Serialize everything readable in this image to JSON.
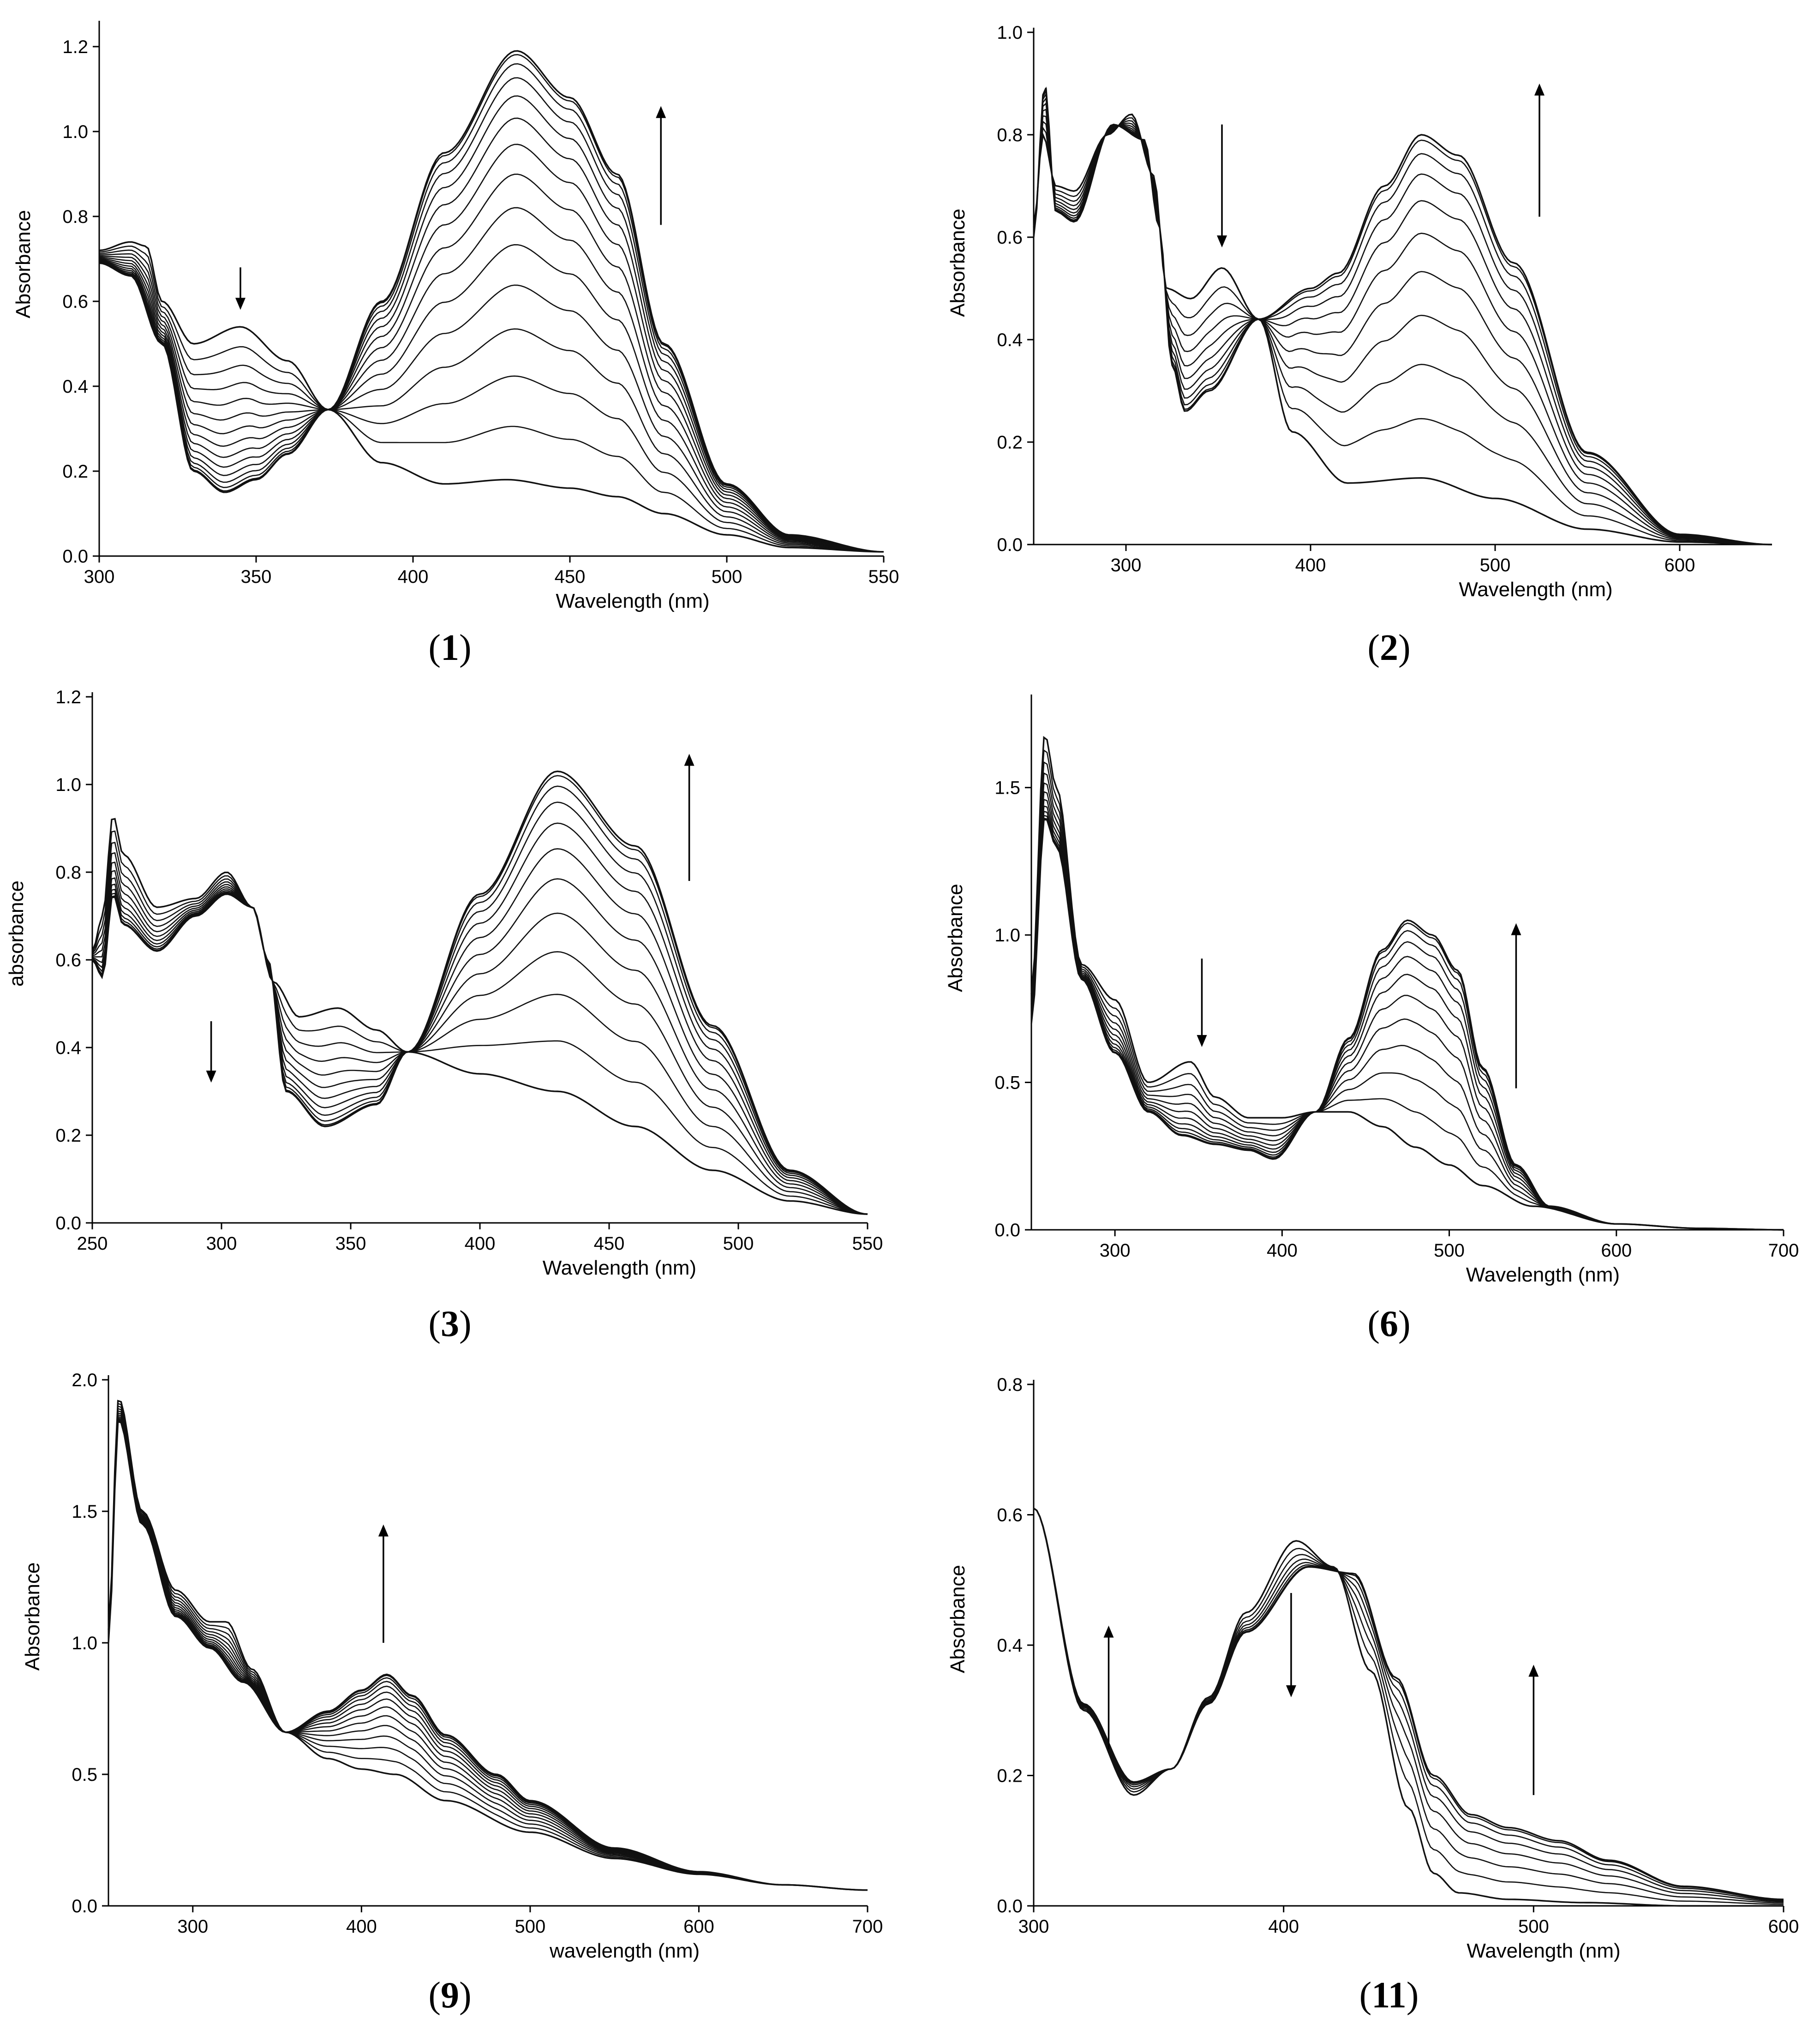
{
  "chart_data": [
    {
      "type": "line",
      "panel_label": "(1)",
      "xlabel": "Wavelength (nm)",
      "ylabel": "Absorbance",
      "xlim": [
        300,
        550
      ],
      "ylim": [
        0.0,
        1.25
      ],
      "xticks": [
        300,
        350,
        400,
        450,
        500,
        550
      ],
      "yticks": [
        0.0,
        0.2,
        0.4,
        0.6,
        0.8,
        1.0,
        1.2
      ],
      "xtick_labels": [
        "300",
        "350",
        "400",
        "450",
        "500",
        "550"
      ],
      "ytick_labels": [
        "0.0",
        "0.2",
        "0.4",
        "0.6",
        "0.8",
        "1.0",
        "1.2"
      ],
      "grid": false,
      "isosbestic": [
        373,
        0.345
      ],
      "series_count": 15,
      "series_first": {
        "name": "initial spectrum",
        "x": [
          300,
          310,
          315,
          320,
          330,
          345,
          360,
          373,
          390,
          410,
          430,
          450,
          465,
          480,
          500,
          520,
          550
        ],
        "y": [
          0.72,
          0.74,
          0.73,
          0.6,
          0.5,
          0.54,
          0.46,
          0.345,
          0.22,
          0.17,
          0.18,
          0.16,
          0.14,
          0.1,
          0.05,
          0.02,
          0.01
        ]
      },
      "series_last": {
        "name": "final spectrum",
        "x": [
          300,
          310,
          320,
          330,
          340,
          350,
          360,
          373,
          390,
          410,
          433,
          450,
          465,
          480,
          500,
          520,
          550
        ],
        "y": [
          0.69,
          0.66,
          0.5,
          0.2,
          0.15,
          0.18,
          0.24,
          0.345,
          0.6,
          0.95,
          1.19,
          1.08,
          0.9,
          0.5,
          0.17,
          0.05,
          0.01
        ]
      },
      "arrows": [
        {
          "x": 345,
          "y_from": 0.68,
          "y_to": 0.58,
          "direction": "down"
        },
        {
          "x": 479,
          "y_from": 0.78,
          "y_to": 1.06,
          "direction": "up"
        }
      ]
    },
    {
      "type": "line",
      "panel_label": "(2)",
      "xlabel": "Wavelength (nm)",
      "ylabel": "Absorbance",
      "xlim": [
        250,
        650
      ],
      "ylim": [
        0.0,
        1.0
      ],
      "xticks": [
        300,
        400,
        500,
        600
      ],
      "yticks": [
        0.0,
        0.2,
        0.4,
        0.6,
        0.8,
        1.0
      ],
      "xtick_labels": [
        "300",
        "400",
        "500",
        "600"
      ],
      "ytick_labels": [
        "0.0",
        "0.2",
        "0.4",
        "0.6",
        "0.8",
        "1.0"
      ],
      "grid": false,
      "isosbestic": [
        372,
        0.44
      ],
      "series_count": 11,
      "series_first": {
        "name": "initial spectrum",
        "x": [
          250,
          255,
          262,
          272,
          290,
          303,
          315,
          322,
          335,
          352,
          372,
          390,
          420,
          460,
          500,
          550,
          600,
          650
        ],
        "y": [
          0.62,
          0.8,
          0.7,
          0.69,
          0.8,
          0.84,
          0.72,
          0.5,
          0.48,
          0.54,
          0.44,
          0.22,
          0.12,
          0.13,
          0.09,
          0.03,
          0.005,
          0.0
        ]
      },
      "series_last": {
        "name": "final spectrum",
        "x": [
          250,
          256,
          262,
          272,
          293,
          310,
          318,
          325,
          332,
          345,
          372,
          400,
          415,
          440,
          460,
          480,
          510,
          550,
          600,
          650
        ],
        "y": [
          0.6,
          0.9,
          0.65,
          0.63,
          0.82,
          0.79,
          0.62,
          0.35,
          0.26,
          0.3,
          0.44,
          0.5,
          0.53,
          0.7,
          0.8,
          0.76,
          0.55,
          0.18,
          0.02,
          0.0
        ]
      },
      "arrows": [
        {
          "x": 352,
          "y_from": 0.82,
          "y_to": 0.58,
          "direction": "down"
        },
        {
          "x": 524,
          "y_from": 0.64,
          "y_to": 0.9,
          "direction": "up"
        }
      ]
    },
    {
      "type": "line",
      "panel_label": "(3)",
      "xlabel": "Wavelength (nm)",
      "ylabel": "absorbance",
      "xlim": [
        250,
        550
      ],
      "ylim": [
        0.0,
        1.2
      ],
      "xticks": [
        250,
        300,
        350,
        400,
        450,
        500,
        550
      ],
      "yticks": [
        0.0,
        0.2,
        0.4,
        0.6,
        0.8,
        1.0,
        1.2
      ],
      "xtick_labels": [
        "250",
        "300",
        "350",
        "400",
        "450",
        "500",
        "550"
      ],
      "ytick_labels": [
        "0.0",
        "0.2",
        "0.4",
        "0.6",
        "0.8",
        "1.0",
        "1.2"
      ],
      "grid": false,
      "isosbestic": [
        372,
        0.39
      ],
      "series_count": 12,
      "series_first": {
        "name": "initial spectrum",
        "x": [
          250,
          254,
          258,
          262,
          275,
          290,
          302,
          312,
          320,
          330,
          345,
          360,
          372,
          400,
          430,
          460,
          490,
          520,
          550
        ],
        "y": [
          0.62,
          0.7,
          0.93,
          0.84,
          0.72,
          0.74,
          0.8,
          0.72,
          0.55,
          0.47,
          0.49,
          0.44,
          0.39,
          0.34,
          0.3,
          0.22,
          0.12,
          0.05,
          0.02
        ]
      },
      "series_last": {
        "name": "final spectrum",
        "x": [
          250,
          254,
          258,
          262,
          275,
          290,
          302,
          312,
          318,
          325,
          340,
          360,
          372,
          400,
          430,
          460,
          490,
          520,
          550
        ],
        "y": [
          0.6,
          0.56,
          0.75,
          0.68,
          0.62,
          0.7,
          0.75,
          0.72,
          0.6,
          0.3,
          0.22,
          0.27,
          0.39,
          0.75,
          1.03,
          0.86,
          0.45,
          0.12,
          0.02
        ]
      },
      "arrows": [
        {
          "x": 296,
          "y_from": 0.46,
          "y_to": 0.32,
          "direction": "down"
        },
        {
          "x": 481,
          "y_from": 0.78,
          "y_to": 1.07,
          "direction": "up"
        }
      ]
    },
    {
      "type": "line",
      "panel_label": "(6)",
      "xlabel": "Wavelength (nm)",
      "ylabel": "Absorbance",
      "xlim": [
        250,
        700
      ],
      "ylim": [
        0.0,
        1.8
      ],
      "xticks": [
        300,
        400,
        500,
        600,
        700
      ],
      "yticks": [
        0.0,
        0.5,
        1.0,
        1.5
      ],
      "xtick_labels": [
        "300",
        "400",
        "500",
        "600",
        "700"
      ],
      "ytick_labels": [
        "0.0",
        "0.5",
        "1.0",
        "1.5"
      ],
      "grid": false,
      "isosbestic": [
        420,
        0.4
      ],
      "series_count": 12,
      "series_first": {
        "name": "initial spectrum",
        "x": [
          250,
          258,
          265,
          280,
          300,
          320,
          345,
          360,
          380,
          400,
          420,
          440,
          460,
          480,
          500,
          520,
          550,
          600,
          650,
          700
        ],
        "y": [
          0.8,
          1.68,
          1.5,
          0.9,
          0.78,
          0.5,
          0.57,
          0.45,
          0.38,
          0.38,
          0.4,
          0.4,
          0.35,
          0.28,
          0.22,
          0.15,
          0.08,
          0.02,
          0.005,
          0.0
        ]
      },
      "series_last": {
        "name": "final spectrum",
        "x": [
          250,
          258,
          265,
          280,
          300,
          320,
          340,
          360,
          380,
          395,
          420,
          440,
          460,
          475,
          490,
          505,
          520,
          540,
          560,
          600,
          650,
          700
        ],
        "y": [
          0.7,
          1.4,
          1.3,
          0.85,
          0.6,
          0.4,
          0.32,
          0.29,
          0.27,
          0.24,
          0.4,
          0.65,
          0.95,
          1.05,
          1.0,
          0.88,
          0.55,
          0.22,
          0.08,
          0.02,
          0.005,
          0.0
        ]
      },
      "arrows": [
        {
          "x": 352,
          "y_from": 0.92,
          "y_to": 0.62,
          "direction": "down"
        },
        {
          "x": 540,
          "y_from": 0.48,
          "y_to": 1.04,
          "direction": "up"
        }
      ]
    },
    {
      "type": "line",
      "panel_label": "(9)",
      "xlabel": "wavelength (nm)",
      "ylabel": "Absorbance",
      "xlim": [
        250,
        700
      ],
      "ylim": [
        0.0,
        2.0
      ],
      "xticks": [
        300,
        400,
        500,
        600,
        700
      ],
      "yticks": [
        0.0,
        0.5,
        1.0,
        1.5,
        2.0
      ],
      "xtick_labels": [
        "300",
        "400",
        "500",
        "600",
        "700"
      ],
      "ytick_labels": [
        "0.0",
        "0.5",
        "1.0",
        "1.5",
        "2.0"
      ],
      "grid": false,
      "isosbestic": [
        355,
        0.66
      ],
      "series_count": 14,
      "series_first": {
        "name": "initial spectrum",
        "x": [
          250,
          256,
          270,
          290,
          310,
          320,
          335,
          355,
          380,
          400,
          420,
          450,
          500,
          550,
          600,
          650,
          700
        ],
        "y": [
          1.05,
          1.93,
          1.5,
          1.2,
          1.08,
          1.08,
          0.9,
          0.66,
          0.56,
          0.52,
          0.5,
          0.4,
          0.28,
          0.18,
          0.12,
          0.08,
          0.06
        ]
      },
      "series_last": {
        "name": "final spectrum",
        "x": [
          250,
          256,
          270,
          290,
          310,
          330,
          355,
          380,
          400,
          415,
          430,
          450,
          480,
          500,
          550,
          600,
          650,
          700
        ],
        "y": [
          1.0,
          1.85,
          1.45,
          1.1,
          0.98,
          0.85,
          0.66,
          0.74,
          0.82,
          0.88,
          0.8,
          0.65,
          0.5,
          0.4,
          0.22,
          0.13,
          0.08,
          0.06
        ]
      },
      "arrows": [
        {
          "x": 413,
          "y_from": 1.0,
          "y_to": 1.45,
          "direction": "up"
        }
      ]
    },
    {
      "type": "line",
      "panel_label": "(11)",
      "xlabel": "Wavelength (nm)",
      "ylabel": "Absorbance",
      "xlim": [
        300,
        600
      ],
      "ylim": [
        0.0,
        0.8
      ],
      "xticks": [
        300,
        400,
        500,
        600
      ],
      "yticks": [
        0.0,
        0.2,
        0.4,
        0.6,
        0.8
      ],
      "xtick_labels": [
        "300",
        "400",
        "500",
        "600"
      ],
      "ytick_labels": [
        "0.0",
        "0.2",
        "0.4",
        "0.6",
        "0.8"
      ],
      "grid": false,
      "isosbestic": [
        428,
        0.51
      ],
      "series_count": 8,
      "series_first": {
        "name": "initial spectrum",
        "x": [
          300,
          320,
          340,
          355,
          370,
          385,
          405,
          420,
          435,
          450,
          460,
          470,
          490,
          520,
          560,
          600
        ],
        "y": [
          0.61,
          0.3,
          0.17,
          0.21,
          0.32,
          0.45,
          0.56,
          0.52,
          0.36,
          0.15,
          0.05,
          0.02,
          0.01,
          0.005,
          0.0,
          0.0
        ]
      },
      "series_last": {
        "name": "final spectrum",
        "x": [
          300,
          320,
          340,
          355,
          370,
          385,
          410,
          428,
          445,
          460,
          475,
          490,
          510,
          530,
          560,
          600
        ],
        "y": [
          0.61,
          0.31,
          0.19,
          0.21,
          0.31,
          0.42,
          0.52,
          0.51,
          0.35,
          0.2,
          0.14,
          0.12,
          0.1,
          0.07,
          0.03,
          0.01
        ]
      },
      "arrows": [
        {
          "x": 330,
          "y_from": 0.24,
          "y_to": 0.43,
          "direction": "up"
        },
        {
          "x": 403,
          "y_from": 0.48,
          "y_to": 0.32,
          "direction": "down"
        },
        {
          "x": 500,
          "y_from": 0.17,
          "y_to": 0.37,
          "direction": "up"
        }
      ]
    }
  ]
}
